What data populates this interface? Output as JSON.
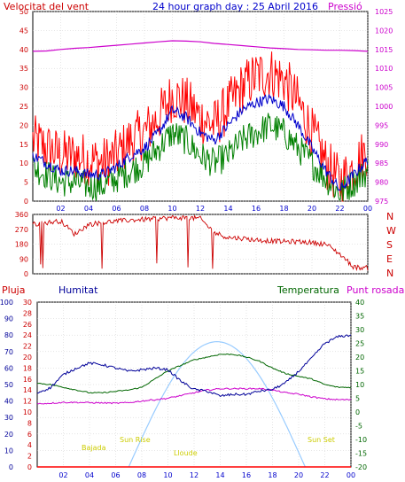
{
  "header": {
    "left_label": "Velocitat del vent",
    "title": "24 hour graph day : 25 Abril 2016",
    "right_label": "Pressió"
  },
  "colors": {
    "wind": "#ff0000",
    "gust": "#ff0000",
    "avgwind": "#0000cc",
    "lowwind": "#008000",
    "pressure": "#cc00cc",
    "direction": "#cc0000",
    "humidity": "#000099",
    "temperature": "#006600",
    "dewpoint": "#cc00cc",
    "solar": "#99ccff",
    "rain": "#ff0000",
    "sunlabel": "#cccc00"
  },
  "chart_data": [
    {
      "type": "line",
      "name": "wind-pressure",
      "x_ticks": [
        "02",
        "04",
        "06",
        "08",
        "10",
        "12",
        "14",
        "16",
        "18",
        "20",
        "22",
        "00"
      ],
      "y_left_ticks": [
        0,
        5,
        10,
        15,
        20,
        25,
        30,
        35,
        40,
        45,
        50
      ],
      "y_left_lim": [
        0,
        50
      ],
      "y_right_ticks": [
        975,
        980,
        985,
        990,
        995,
        1000,
        1005,
        1010,
        1015,
        1020,
        1025
      ],
      "y_right_lim": [
        975,
        1025
      ],
      "x_hours": [
        0,
        1,
        2,
        3,
        4,
        5,
        6,
        7,
        8,
        9,
        10,
        11,
        12,
        13,
        14,
        15,
        16,
        17,
        18,
        19,
        20,
        21,
        22,
        23,
        24
      ],
      "gust": [
        16,
        14,
        12,
        12,
        11,
        10,
        12,
        16,
        18,
        22,
        28,
        26,
        22,
        20,
        25,
        30,
        33,
        34,
        32,
        26,
        18,
        10,
        5,
        9,
        14
      ],
      "average": [
        12,
        10,
        8,
        8,
        7,
        7,
        9,
        12,
        14,
        18,
        24,
        22,
        18,
        16,
        20,
        24,
        26,
        27,
        25,
        20,
        14,
        8,
        3,
        7,
        11
      ],
      "low": [
        9,
        7,
        5,
        5,
        4,
        4,
        6,
        8,
        10,
        14,
        18,
        16,
        12,
        10,
        12,
        16,
        18,
        20,
        18,
        14,
        10,
        6,
        2,
        5,
        8
      ],
      "pressure": [
        1014.5,
        1014.6,
        1015.0,
        1015.3,
        1015.5,
        1015.8,
        1016.1,
        1016.4,
        1016.7,
        1017.0,
        1017.3,
        1017.2,
        1017.0,
        1016.6,
        1016.3,
        1016.0,
        1015.7,
        1015.4,
        1015.2,
        1015.0,
        1014.9,
        1014.8,
        1014.8,
        1014.7,
        1014.5
      ]
    },
    {
      "type": "scatter",
      "name": "wind-direction",
      "y_ticks": [
        0,
        90,
        180,
        270,
        360
      ],
      "y_lim": [
        0,
        360
      ],
      "compass": [
        "N",
        "W",
        "S",
        "E",
        "N"
      ],
      "x_hours": [
        0,
        1,
        2,
        3,
        4,
        5,
        6,
        7,
        8,
        9,
        10,
        11,
        12,
        13,
        14,
        15,
        16,
        17,
        18,
        19,
        20,
        21,
        22,
        23,
        24
      ],
      "direction": [
        300,
        310,
        320,
        240,
        300,
        310,
        320,
        325,
        330,
        335,
        340,
        340,
        335,
        250,
        220,
        215,
        205,
        200,
        195,
        195,
        190,
        180,
        120,
        40,
        35
      ]
    },
    {
      "type": "line",
      "name": "humidity-temperature",
      "labels": {
        "rain": "Pluja",
        "humidity": "Humitat",
        "temperature": "Temperatura",
        "dewpoint": "Punt rosada"
      },
      "y_humidity_ticks": [
        0,
        10,
        20,
        30,
        40,
        50,
        60,
        70,
        80,
        90,
        100
      ],
      "y_humidity_lim": [
        0,
        100
      ],
      "y_rain_ticks": [
        0,
        2,
        4,
        6,
        8,
        10,
        12,
        14,
        16,
        18,
        20,
        22,
        24,
        26,
        28,
        30
      ],
      "y_rain_lim": [
        0,
        30
      ],
      "y_temp_ticks": [
        -20,
        -15,
        -10,
        -5,
        0,
        5,
        10,
        15,
        20,
        25,
        30,
        35,
        40
      ],
      "y_temp_lim": [
        -20,
        40
      ],
      "x_hours": [
        0,
        1,
        2,
        3,
        4,
        5,
        6,
        7,
        8,
        9,
        10,
        11,
        12,
        13,
        14,
        15,
        16,
        17,
        18,
        19,
        20,
        21,
        22,
        23,
        24
      ],
      "humidity": [
        45,
        48,
        56,
        60,
        63,
        62,
        60,
        58,
        59,
        60,
        59,
        52,
        47,
        46,
        43,
        44,
        44,
        46,
        47,
        51,
        58,
        66,
        75,
        79,
        80
      ],
      "temperature": [
        10.5,
        10,
        9,
        8,
        7,
        7,
        7.5,
        8,
        9,
        12,
        15,
        17,
        19,
        20,
        21,
        21,
        20,
        18.5,
        16,
        14,
        13,
        12,
        10,
        9,
        9
      ],
      "dewpoint": [
        3,
        3.2,
        3.5,
        3.5,
        3.4,
        3.3,
        3.2,
        3.4,
        4,
        4.5,
        5,
        6,
        7,
        8,
        8.5,
        8.5,
        8.5,
        8.5,
        8,
        7,
        6.5,
        5.5,
        4.8,
        4.5,
        4.5
      ],
      "solar_peak_hour": 14,
      "solar_start_hour": 7,
      "solar_end_hour": 20.5,
      "solar_peak_pct": 76,
      "rain": [
        0,
        0,
        0,
        0,
        0,
        0,
        0,
        0,
        0,
        0,
        0,
        0,
        0,
        0,
        0,
        0,
        0,
        0,
        0,
        0,
        0,
        0,
        0,
        0,
        0
      ],
      "annotations": {
        "solar1": "Bajada",
        "sunrise": "Sun Rise",
        "solar2": "Lloude",
        "sunset": "Sun Set"
      }
    }
  ]
}
